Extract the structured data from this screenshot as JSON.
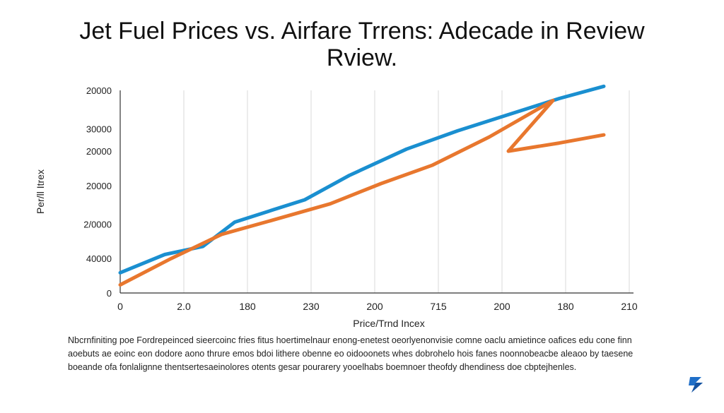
{
  "title": "Jet Fuel Prices vs. Airfare Trrens: Adecade in Review",
  "subtitle": "Rview.",
  "footnote": "Nbcrnfiniting poe Fordrepeinced sieercoinc fries fitus hoertimelnaur enong-enetest oeorlyenonvisie comne oaclu amietince oafices edu cone finn aoebuts ae eoinc eon dodore aono thrure emos bdoi lithere obenne eo oidooonets whes dobrohelo hois fanes noonnobeacbe aleaoo by taesene boeande ofa fonlalignne thentsertesaeinolores otents gesar pourarery yooelhabs boemnoer theofdy dhendiness doe cbptejhenles.",
  "colors": {
    "blue": "#1a8fd0",
    "orange": "#e8772e",
    "grid": "#d9d9d9",
    "axis": "#333333"
  },
  "chart_data": {
    "type": "line",
    "title": "Jet Fuel Prices vs. Airfare Trrens: Adecade in Review",
    "subtitle": "Rview.",
    "xlabel": "Price/Trnd Incex",
    "ylabel": "Per/ll Itrex",
    "x_tick_labels": [
      "0",
      "2.0",
      "180",
      "230",
      "200",
      "715",
      "200",
      "180",
      "210"
    ],
    "y_tick_labels": [
      "0",
      "40000",
      "2/0000",
      "20000",
      "20000",
      "30000",
      "20000"
    ],
    "x": [
      0,
      1,
      2,
      3,
      4,
      5,
      6,
      7,
      8
    ],
    "y_scale": "index",
    "ylim": [
      0,
      100
    ],
    "grid": "vertical",
    "legend": "none",
    "series": [
      {
        "color": "#1a8fd0",
        "points": [
          [
            0,
            10
          ],
          [
            0.7,
            19
          ],
          [
            1.3,
            23
          ],
          [
            1.8,
            35
          ],
          [
            2.4,
            41
          ],
          [
            2.9,
            46
          ],
          [
            3.6,
            58
          ],
          [
            4.5,
            71
          ],
          [
            5.3,
            80
          ],
          [
            6.1,
            88
          ],
          [
            6.9,
            96
          ],
          [
            7.6,
            102
          ]
        ]
      },
      {
        "color": "#e8772e",
        "points": [
          [
            0,
            4
          ],
          [
            0.8,
            17
          ],
          [
            1.6,
            29
          ],
          [
            2.4,
            36
          ],
          [
            3.3,
            44
          ],
          [
            4.1,
            54
          ],
          [
            4.9,
            63
          ],
          [
            5.8,
            77
          ],
          [
            6.8,
            95
          ],
          [
            6.1,
            70
          ],
          [
            6.9,
            74
          ],
          [
            7.6,
            78
          ]
        ]
      }
    ]
  }
}
